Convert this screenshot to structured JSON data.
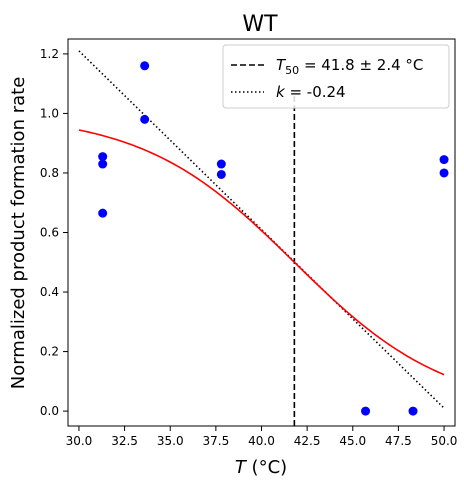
{
  "chart_data": {
    "type": "scatter",
    "title": "WT",
    "xlabel": "T (°C)",
    "ylabel": "Normalized product formation rate",
    "xlim": [
      29.4,
      50.6
    ],
    "ylim": [
      -0.05,
      1.25
    ],
    "x_ticks": [
      "30.0",
      "32.5",
      "35.0",
      "37.5",
      "40.0",
      "42.5",
      "45.0",
      "47.5",
      "50.0"
    ],
    "y_ticks": [
      "0.0",
      "0.2",
      "0.4",
      "0.6",
      "0.8",
      "1.0",
      "1.2"
    ],
    "grid": false,
    "legend_position": "top-right",
    "series": [
      {
        "kind": "points",
        "color": "#0000ff",
        "points": [
          [
            31.3,
            0.665
          ],
          [
            31.3,
            0.83
          ],
          [
            31.3,
            0.855
          ],
          [
            33.6,
            0.98
          ],
          [
            33.6,
            1.16
          ],
          [
            37.8,
            0.795
          ],
          [
            37.8,
            0.83
          ],
          [
            45.7,
            0.0
          ],
          [
            48.3,
            0.0
          ],
          [
            50.0,
            0.8
          ],
          [
            50.0,
            0.845
          ]
        ]
      },
      {
        "kind": "sigmoid-fit",
        "color": "#ff0000",
        "x_range": [
          30.0,
          50.0
        ],
        "y_max": 1.0,
        "t50": 41.8,
        "slope": 0.24
      },
      {
        "name": "T50 = 41.8 ± 2.4 °C",
        "kind": "vertical-dashed",
        "color": "#000000",
        "x": 41.8,
        "y_range": [
          -0.05,
          1.06
        ]
      },
      {
        "name": "k = -0.24",
        "kind": "dotted-line",
        "color": "#000000",
        "x_range": [
          30.0,
          50.0
        ],
        "y_values": [
          1.21,
          0.01
        ]
      }
    ]
  },
  "legend": {
    "t50_prefix": "T",
    "t50_sub": "50",
    "t50_value": " = 41.8 ± 2.4 °C",
    "k_symbol": "k",
    "k_value": " = -0.24"
  },
  "axis_label_parts": {
    "x_symbol": "T",
    "x_unit": " (°C)"
  }
}
